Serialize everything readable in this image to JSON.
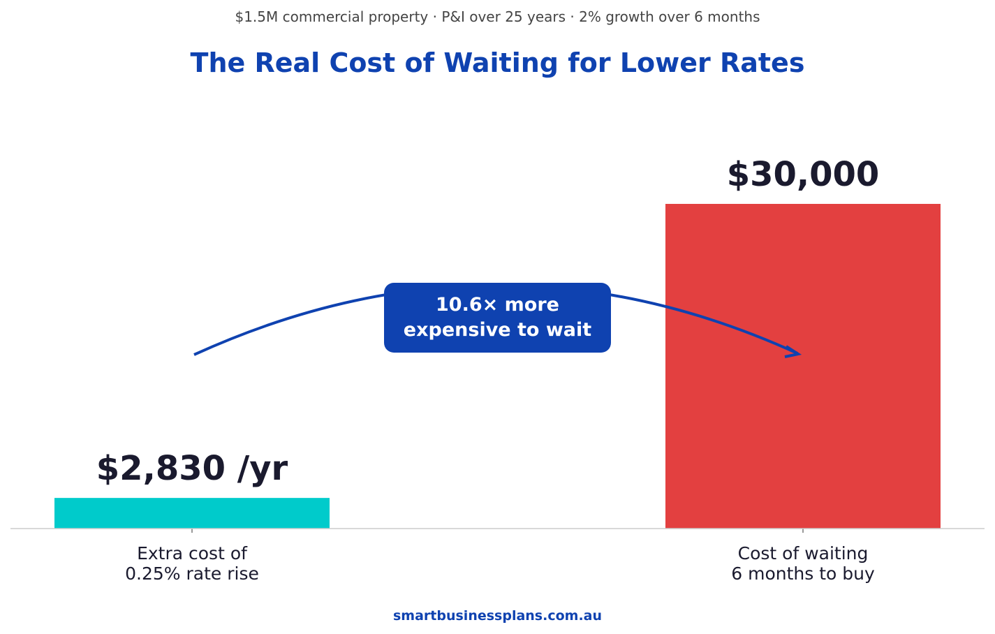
{
  "subtitle": "$1.5M commercial property  ·  P&I over 25 years  ·  2% growth over 6 months",
  "title": "The Real Cost of Waiting for Lower Rates",
  "footer": "smartbusinessplans.com.au",
  "callout": "10.6× more\nexpensive to wait",
  "colors": {
    "accent": "#0f42b0",
    "teal": "#00cbcb",
    "red": "#e34040",
    "text": "#1a1a2e"
  },
  "chart_data": {
    "type": "bar",
    "categories": [
      "Extra cost of\n0.25% rate rise",
      "Cost of waiting\n6 months to buy"
    ],
    "values": [
      2830,
      30000
    ],
    "data_labels": [
      "$2,830 /yr",
      "$30,000"
    ],
    "bar_colors": [
      "#00cbcb",
      "#e34040"
    ],
    "ylim": [
      0,
      40000
    ],
    "grid": false,
    "annotation": "10.6× more expensive to wait"
  }
}
